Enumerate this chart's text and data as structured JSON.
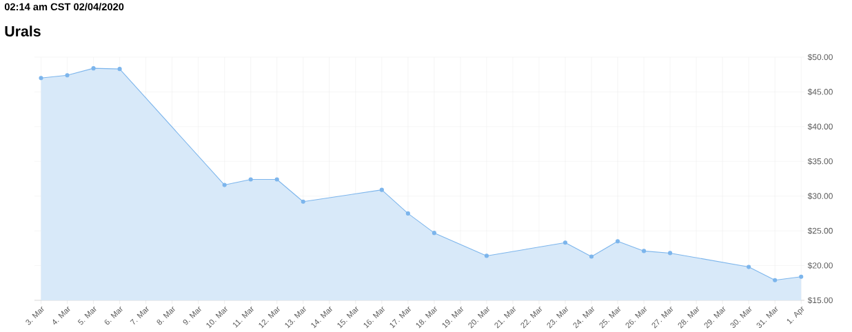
{
  "chart_data": {
    "type": "area",
    "title": "Urals",
    "subtitle": "02:14 am CST 02/04/2020",
    "x": [
      "2020-03-03",
      "2020-03-04",
      "2020-03-05",
      "2020-03-06",
      "2020-03-10",
      "2020-03-11",
      "2020-03-12",
      "2020-03-13",
      "2020-03-16",
      "2020-03-17",
      "2020-03-18",
      "2020-03-20",
      "2020-03-23",
      "2020-03-24",
      "2020-03-25",
      "2020-03-26",
      "2020-03-27",
      "2020-03-30",
      "2020-03-31",
      "2020-04-01"
    ],
    "series": [
      {
        "color": "#7cb5ec",
        "values": [
          47.0,
          47.4,
          48.4,
          48.3,
          31.6,
          32.4,
          32.4,
          29.2,
          30.9,
          27.5,
          24.7,
          21.4,
          23.3,
          21.3,
          23.5,
          22.1,
          21.8,
          19.8,
          17.9,
          18.4
        ]
      }
    ],
    "xlim": [
      "2020-03-02T18:00",
      "2020-04-01T03:00"
    ],
    "xticks": [
      {
        "value": "2020-03-03",
        "label": "3. Mar"
      },
      {
        "value": "2020-03-04",
        "label": "4. Mar"
      },
      {
        "value": "2020-03-05",
        "label": "5. Mar"
      },
      {
        "value": "2020-03-06",
        "label": "6. Mar"
      },
      {
        "value": "2020-03-07",
        "label": "7. Mar"
      },
      {
        "value": "2020-03-08",
        "label": "8. Mar"
      },
      {
        "value": "2020-03-09",
        "label": "9. Mar"
      },
      {
        "value": "2020-03-10",
        "label": "10. Mar"
      },
      {
        "value": "2020-03-11",
        "label": "11. Mar"
      },
      {
        "value": "2020-03-12",
        "label": "12. Mar"
      },
      {
        "value": "2020-03-13",
        "label": "13. Mar"
      },
      {
        "value": "2020-03-14",
        "label": "14. Mar"
      },
      {
        "value": "2020-03-15",
        "label": "15. Mar"
      },
      {
        "value": "2020-03-16",
        "label": "16. Mar"
      },
      {
        "value": "2020-03-17",
        "label": "17. Mar"
      },
      {
        "value": "2020-03-18",
        "label": "18. Mar"
      },
      {
        "value": "2020-03-19",
        "label": "19. Mar"
      },
      {
        "value": "2020-03-20",
        "label": "20. Mar"
      },
      {
        "value": "2020-03-21",
        "label": "21. Mar"
      },
      {
        "value": "2020-03-22",
        "label": "22. Mar"
      },
      {
        "value": "2020-03-23",
        "label": "23. Mar"
      },
      {
        "value": "2020-03-24",
        "label": "24. Mar"
      },
      {
        "value": "2020-03-25",
        "label": "25. Mar"
      },
      {
        "value": "2020-03-26",
        "label": "26. Mar"
      },
      {
        "value": "2020-03-27",
        "label": "27. Mar"
      },
      {
        "value": "2020-03-28",
        "label": "28. Mar"
      },
      {
        "value": "2020-03-29",
        "label": "29. Mar"
      },
      {
        "value": "2020-03-30",
        "label": "30. Mar"
      },
      {
        "value": "2020-03-31",
        "label": "31. Mar"
      },
      {
        "value": "2020-04-01",
        "label": "1. Apr"
      }
    ],
    "ylim": [
      15,
      50
    ],
    "yticks": [
      {
        "value": 15,
        "label": "$15.00"
      },
      {
        "value": 20,
        "label": "$20.00"
      },
      {
        "value": 25,
        "label": "$25.00"
      },
      {
        "value": 30,
        "label": "$30.00"
      },
      {
        "value": 35,
        "label": "$35.00"
      },
      {
        "value": 40,
        "label": "$40.00"
      },
      {
        "value": 45,
        "label": "$45.00"
      },
      {
        "value": 50,
        "label": "$50.00"
      }
    ],
    "grid": true,
    "marker": "circle",
    "line_style": "solid"
  }
}
